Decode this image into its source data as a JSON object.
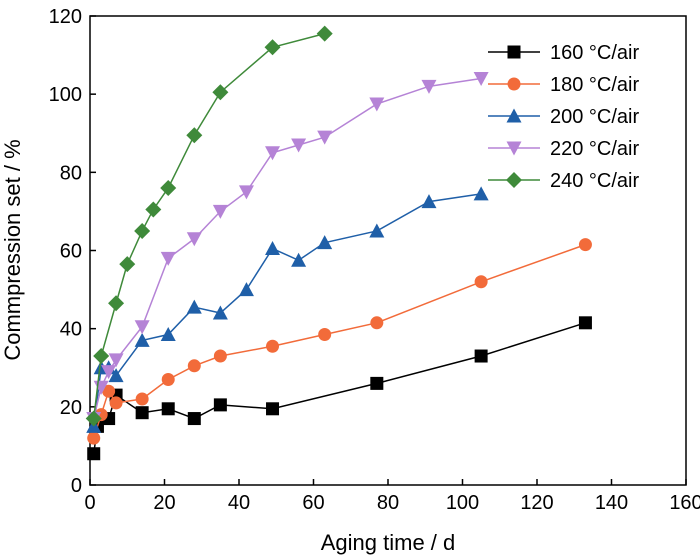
{
  "chart_data": {
    "type": "line",
    "xlabel": "Aging time / d",
    "ylabel": "Commpression set / %",
    "xlim": [
      0,
      160
    ],
    "ylim": [
      0,
      120
    ],
    "xticks": [
      0,
      20,
      40,
      60,
      80,
      100,
      120,
      140,
      160
    ],
    "yticks": [
      0,
      20,
      40,
      60,
      80,
      100,
      120
    ],
    "grid": false,
    "legend_position": "top-right",
    "series": [
      {
        "name": "160 °C/air",
        "color": "#000000",
        "marker": "square",
        "x": [
          1,
          2,
          5,
          7,
          14,
          21,
          28,
          35,
          49,
          77,
          105,
          133
        ],
        "y": [
          8,
          15,
          17,
          23,
          18.5,
          19.5,
          17,
          20.5,
          19.5,
          26,
          33,
          41.5
        ]
      },
      {
        "name": "180 °C/air",
        "color": "#f26b3a",
        "marker": "circle",
        "x": [
          1,
          3,
          5,
          7,
          14,
          21,
          28,
          35,
          49,
          63,
          77,
          105,
          133
        ],
        "y": [
          12,
          18,
          24,
          21,
          22,
          27,
          30.5,
          33,
          35.5,
          38.5,
          41.5,
          52,
          61.5
        ]
      },
      {
        "name": "200 °C/air",
        "color": "#1f5fa8",
        "marker": "triangle-up",
        "x": [
          1,
          3,
          5,
          7,
          14,
          21,
          28,
          35,
          42,
          49,
          56,
          63,
          77,
          91,
          105
        ],
        "y": [
          15,
          30,
          30,
          28,
          37,
          38.5,
          45.5,
          44,
          50,
          60.5,
          57.5,
          62,
          65,
          72.5,
          74.5
        ]
      },
      {
        "name": "220 °C/air",
        "color": "#b583d6",
        "marker": "triangle-down",
        "x": [
          1,
          3,
          5,
          7,
          14,
          21,
          28,
          35,
          42,
          49,
          56,
          63,
          77,
          91,
          105
        ],
        "y": [
          17,
          25,
          29,
          32,
          40.5,
          58,
          63,
          70,
          75,
          85,
          87,
          89,
          97.5,
          102,
          104
        ]
      },
      {
        "name": "240 °C/air",
        "color": "#3f8a3a",
        "marker": "diamond",
        "x": [
          1,
          3,
          7,
          10,
          14,
          17,
          21,
          28,
          35,
          49,
          63
        ],
        "y": [
          17,
          33,
          46.5,
          56.5,
          65,
          70.5,
          76,
          89.5,
          100.5,
          112,
          115.5
        ]
      }
    ]
  }
}
